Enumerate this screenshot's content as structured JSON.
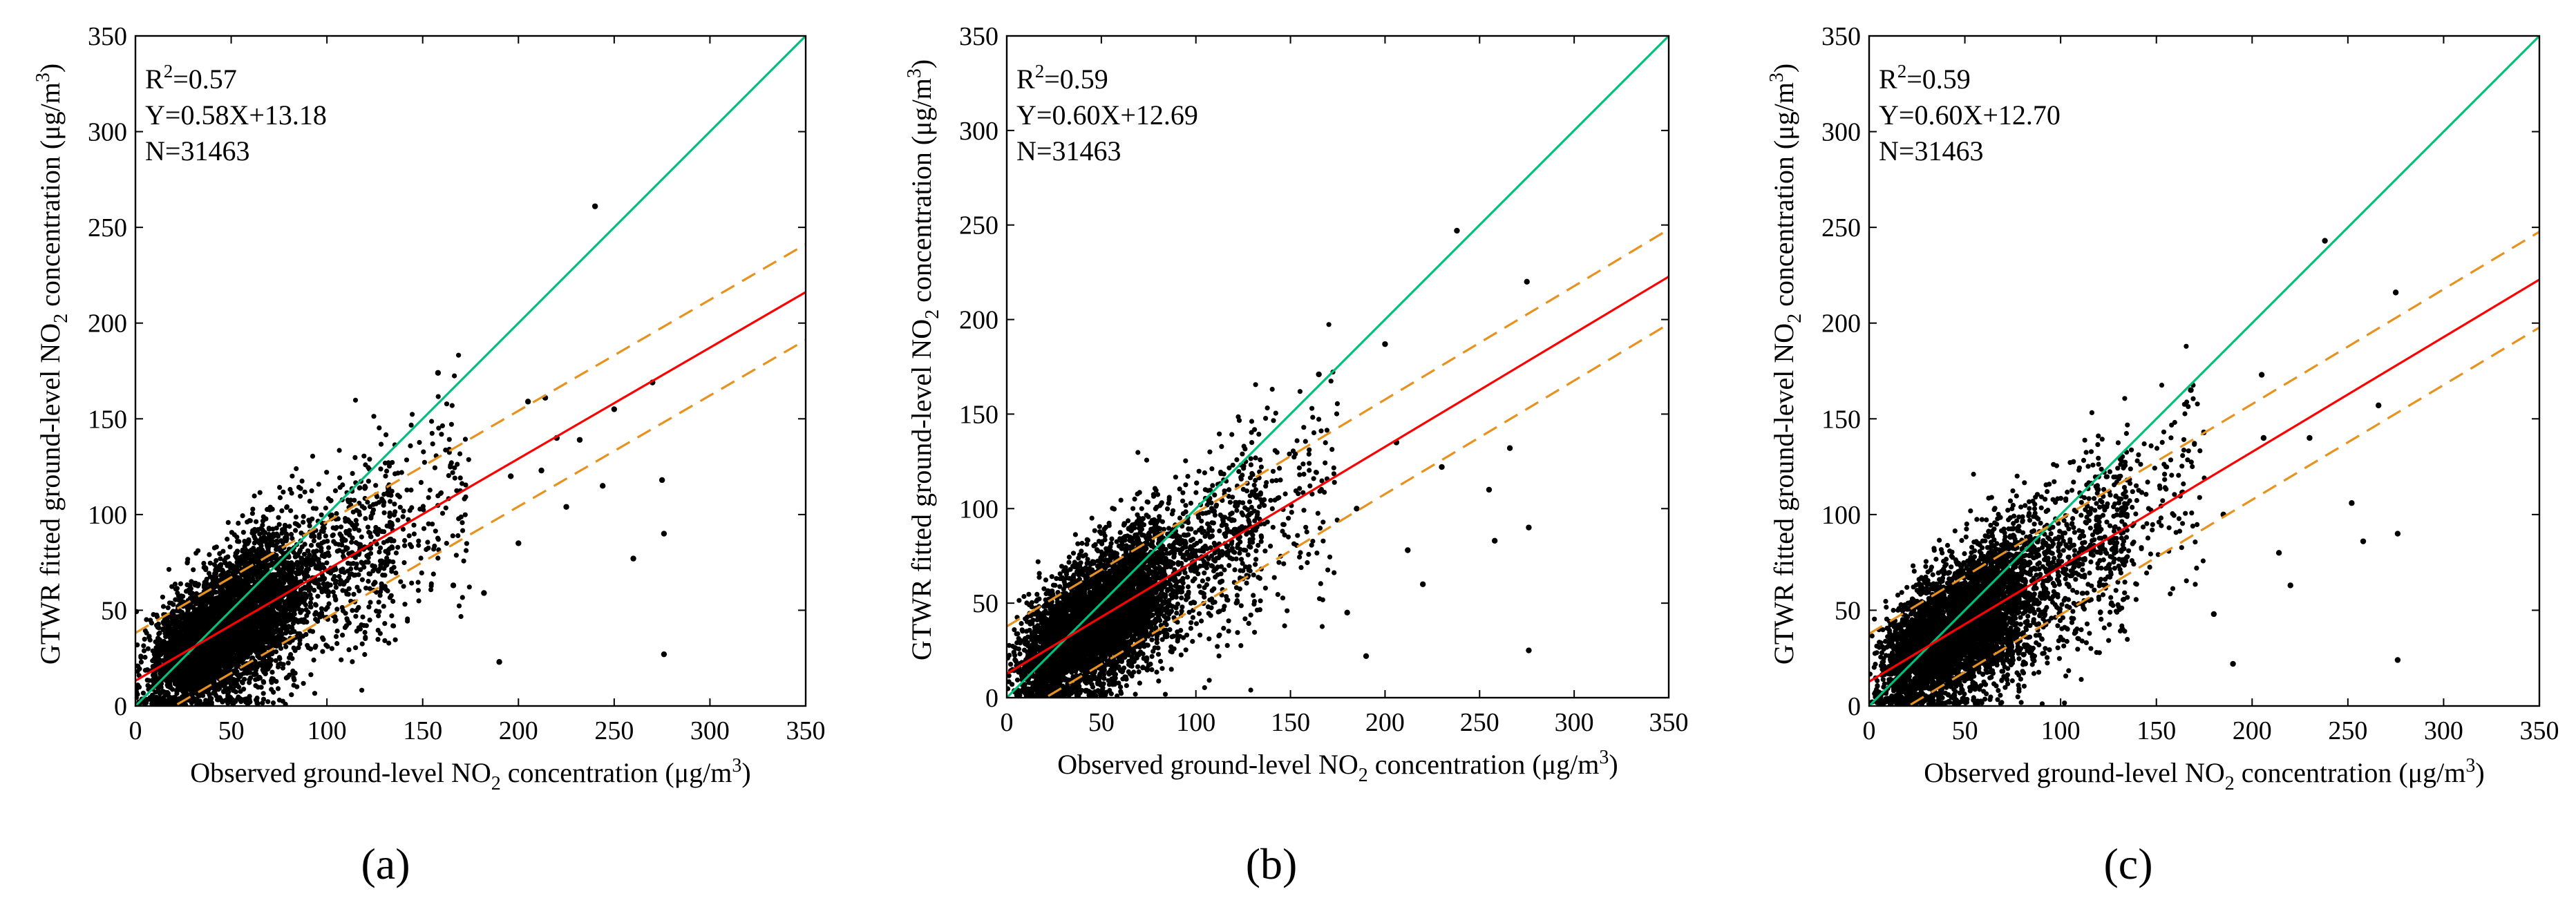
{
  "figure": {
    "panels_count": 3,
    "colors": {
      "points": "#000000",
      "identity_line": "#00c07a",
      "fit_line": "#ff0000",
      "band_lines": "#e8921e",
      "axes": "#000000"
    }
  },
  "chart_data": [
    {
      "type": "scatter",
      "panel": "(a)",
      "caption": "(a)",
      "title": "",
      "xlabel_parts": [
        "Observed ground-level NO",
        "2",
        " concentration (μg/m",
        "3",
        ")"
      ],
      "ylabel_parts": [
        "GTWR fitted ground-level NO",
        "2",
        " concentration (μg/m",
        "3",
        ")"
      ],
      "xlim": [
        0,
        350
      ],
      "ylim": [
        0,
        350
      ],
      "xticks": [
        0,
        50,
        100,
        150,
        200,
        250,
        300,
        350
      ],
      "yticks": [
        0,
        50,
        100,
        150,
        200,
        250,
        300,
        350
      ],
      "annotations": {
        "r2_prefix": "R",
        "r2_sup": "2",
        "r2_value": "=0.57",
        "equation": "Y=0.58X+13.18",
        "n": "N=31463"
      },
      "fit": {
        "slope": 0.58,
        "intercept": 13.18
      },
      "band_offset": 25,
      "n_points": 31463,
      "outliers": [
        [
          240,
          261
        ],
        [
          158,
          174
        ],
        [
          270,
          169
        ],
        [
          250,
          155
        ],
        [
          275,
          118
        ],
        [
          276,
          27
        ],
        [
          260,
          77
        ],
        [
          225,
          104
        ],
        [
          212,
          123
        ],
        [
          205,
          159
        ],
        [
          196,
          120
        ],
        [
          190,
          23
        ],
        [
          182,
          59
        ],
        [
          166,
          63
        ],
        [
          276,
          90
        ],
        [
          214,
          161
        ],
        [
          220,
          140
        ],
        [
          244,
          115
        ],
        [
          232,
          139
        ],
        [
          200,
          85
        ]
      ]
    },
    {
      "type": "scatter",
      "panel": "(b)",
      "caption": "(b)",
      "title": "",
      "xlabel_parts": [
        "Observed ground-level NO",
        "2",
        " concentration (μg/m",
        "3",
        ")"
      ],
      "ylabel_parts": [
        "GTWR fitted ground-level NO",
        "2",
        " concentration (μg/m",
        "3",
        ")"
      ],
      "xlim": [
        0,
        350
      ],
      "ylim": [
        0,
        350
      ],
      "xticks": [
        0,
        50,
        100,
        150,
        200,
        250,
        300,
        350
      ],
      "yticks": [
        0,
        50,
        100,
        150,
        200,
        250,
        300,
        350
      ],
      "annotations": {
        "r2_prefix": "R",
        "r2_sup": "2",
        "r2_value": "=0.59",
        "equation": "Y=0.60X+12.69",
        "n": "N=31463"
      },
      "fit": {
        "slope": 0.6,
        "intercept": 12.69
      },
      "band_offset": 25,
      "n_points": 31463,
      "outliers": [
        [
          238,
          247
        ],
        [
          275,
          220
        ],
        [
          200,
          187
        ],
        [
          165,
          171
        ],
        [
          255,
          110
        ],
        [
          258,
          83
        ],
        [
          266,
          132
        ],
        [
          276,
          90
        ],
        [
          276,
          25
        ],
        [
          212,
          78
        ],
        [
          206,
          135
        ],
        [
          190,
          22
        ],
        [
          180,
          45
        ],
        [
          230,
          122
        ],
        [
          220,
          60
        ],
        [
          185,
          100
        ]
      ]
    },
    {
      "type": "scatter",
      "panel": "(c)",
      "caption": "(c)",
      "title": "",
      "xlabel_parts": [
        "Observed ground-level NO",
        "2",
        " concentration (μg/m",
        "3",
        ")"
      ],
      "ylabel_parts": [
        "GTWR fitted ground-level NO",
        "2",
        " concentration (μg/m",
        "3",
        ")"
      ],
      "xlim": [
        0,
        350
      ],
      "ylim": [
        0,
        350
      ],
      "xticks": [
        0,
        50,
        100,
        150,
        200,
        250,
        300,
        350
      ],
      "yticks": [
        0,
        50,
        100,
        150,
        200,
        250,
        300,
        350
      ],
      "annotations": {
        "r2_prefix": "R",
        "r2_sup": "2",
        "r2_value": "=0.59",
        "equation": "Y=0.60X+12.70",
        "n": "N=31463"
      },
      "fit": {
        "slope": 0.6,
        "intercept": 12.7
      },
      "band_offset": 25,
      "n_points": 31463,
      "outliers": [
        [
          238,
          243
        ],
        [
          275,
          216
        ],
        [
          205,
          173
        ],
        [
          168,
          165
        ],
        [
          252,
          106
        ],
        [
          258,
          86
        ],
        [
          266,
          157
        ],
        [
          276,
          90
        ],
        [
          276,
          24
        ],
        [
          214,
          80
        ],
        [
          206,
          140
        ],
        [
          190,
          22
        ],
        [
          180,
          48
        ],
        [
          230,
          140
        ],
        [
          220,
          63
        ],
        [
          185,
          100
        ]
      ]
    }
  ]
}
